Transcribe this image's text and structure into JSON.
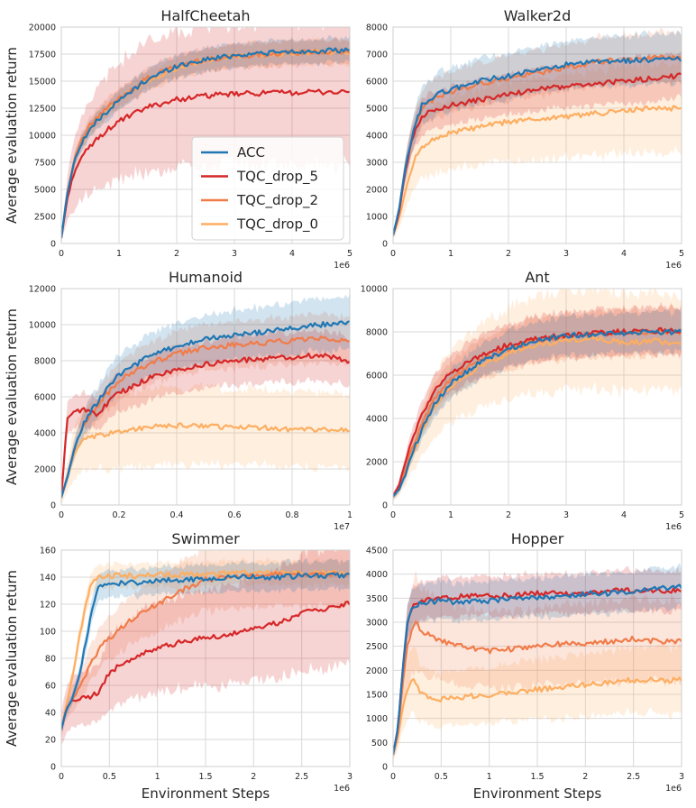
{
  "figure": {
    "x_axis_label": "Environment Steps",
    "y_axis_label": "Average evaluation return"
  },
  "colors": {
    "ACC": "#1f77b4",
    "TQC_drop_5": "#d62728",
    "TQC_drop_2": "#f07c4a",
    "TQC_drop_0": "#fdae61"
  },
  "legend": [
    "ACC",
    "TQC_drop_5",
    "TQC_drop_2",
    "TQC_drop_0"
  ],
  "chart_data": [
    {
      "type": "line",
      "title": "HalfCheetah",
      "xlabel": "",
      "ylabel": "Average evaluation return",
      "x_multiplier": "1e6",
      "xlim": [
        0,
        5
      ],
      "ylim": [
        0,
        20000
      ],
      "xticks": [
        0,
        1,
        2,
        3,
        4,
        5
      ],
      "yticks": [
        0,
        2500,
        5000,
        7500,
        10000,
        12500,
        15000,
        17500,
        20000
      ],
      "x": [
        0,
        0.05,
        0.1,
        0.2,
        0.3,
        0.5,
        0.75,
        1,
        1.5,
        2,
        2.5,
        3,
        3.5,
        4,
        4.5,
        5
      ],
      "series": [
        {
          "name": "ACC",
          "values": [
            500,
            2500,
            4500,
            7000,
            8800,
            10600,
            12000,
            13200,
            15200,
            16400,
            17000,
            17400,
            17600,
            17700,
            17800,
            17800
          ],
          "spread": 0.05
        },
        {
          "name": "TQC_drop_5",
          "values": [
            500,
            2300,
            4000,
            6200,
            7500,
            9000,
            10300,
            11300,
            12600,
            13300,
            13650,
            13800,
            13900,
            13950,
            14000,
            14000
          ],
          "spread": 0.45
        },
        {
          "name": "TQC_drop_2",
          "values": [
            500,
            2500,
            4500,
            7200,
            9000,
            10900,
            12300,
            13400,
            15300,
            16400,
            17000,
            17300,
            17500,
            17600,
            17700,
            17700
          ],
          "spread": 0.05
        },
        {
          "name": "TQC_drop_0",
          "values": [
            500,
            2400,
            4300,
            7000,
            8800,
            10700,
            12100,
            13300,
            15100,
            16200,
            16900,
            17300,
            17500,
            17600,
            17700,
            17700
          ],
          "spread": 0.05
        }
      ],
      "legend_position": "center-right"
    },
    {
      "type": "line",
      "title": "Walker2d",
      "xlabel": "",
      "ylabel": "",
      "x_multiplier": "1e6",
      "xlim": [
        0,
        5
      ],
      "ylim": [
        0,
        8000
      ],
      "xticks": [
        0,
        1,
        2,
        3,
        4,
        5
      ],
      "yticks": [
        0,
        1000,
        2000,
        3000,
        4000,
        5000,
        6000,
        7000,
        8000
      ],
      "x": [
        0,
        0.1,
        0.2,
        0.3,
        0.4,
        0.5,
        0.75,
        1,
        1.5,
        2,
        2.5,
        3,
        3.5,
        4,
        4.5,
        5
      ],
      "series": [
        {
          "name": "ACC",
          "values": [
            300,
            1200,
            2600,
            3700,
            4500,
            5100,
            5500,
            5700,
            6000,
            6200,
            6400,
            6600,
            6700,
            6750,
            6800,
            6800
          ],
          "spread": 0.12
        },
        {
          "name": "TQC_drop_5",
          "values": [
            300,
            1100,
            2500,
            3600,
            4300,
            4700,
            5000,
            5100,
            5300,
            5500,
            5700,
            5800,
            5900,
            6000,
            6100,
            6200
          ],
          "spread": 0.12
        },
        {
          "name": "TQC_drop_2",
          "values": [
            300,
            1200,
            2600,
            3700,
            4500,
            5000,
            5400,
            5600,
            5900,
            6100,
            6300,
            6500,
            6700,
            6800,
            6850,
            6900
          ],
          "spread": 0.12
        },
        {
          "name": "TQC_drop_0",
          "values": [
            300,
            900,
            1800,
            2600,
            3200,
            3600,
            3900,
            4100,
            4300,
            4500,
            4600,
            4700,
            4800,
            4900,
            5000,
            5000
          ],
          "spread": 0.3
        }
      ]
    },
    {
      "type": "line",
      "title": "Humanoid",
      "xlabel": "",
      "ylabel": "Average evaluation return",
      "x_multiplier": "1e7",
      "xlim": [
        0,
        1.0
      ],
      "ylim": [
        0,
        12000
      ],
      "xticks": [
        0,
        0.2,
        0.4,
        0.6,
        0.8,
        1.0
      ],
      "yticks": [
        0,
        2000,
        4000,
        6000,
        8000,
        10000,
        12000
      ],
      "x": [
        0,
        0.02,
        0.04,
        0.06,
        0.08,
        0.1,
        0.12,
        0.15,
        0.2,
        0.3,
        0.4,
        0.5,
        0.6,
        0.7,
        0.8,
        0.9,
        1.0
      ],
      "series": [
        {
          "name": "ACC",
          "values": [
            400,
            1500,
            2800,
            3800,
            4600,
            5100,
            5600,
            6300,
            7200,
            8200,
            8800,
            9200,
            9400,
            9600,
            9800,
            10000,
            10100
          ],
          "spread": 0.13
        },
        {
          "name": "TQC_drop_5",
          "values": [
            400,
            4800,
            5100,
            5200,
            5300,
            5300,
            4900,
            5500,
            6200,
            7000,
            7500,
            7800,
            8000,
            8100,
            8200,
            8300,
            8000
          ],
          "spread": 0.15
        },
        {
          "name": "TQC_drop_2",
          "values": [
            400,
            1500,
            2800,
            3800,
            4500,
            5000,
            5400,
            6000,
            6900,
            7800,
            8400,
            8700,
            8900,
            9000,
            9100,
            9200,
            9100
          ],
          "spread": 0.13
        },
        {
          "name": "TQC_drop_0",
          "values": [
            400,
            1500,
            2600,
            3300,
            3600,
            3700,
            3800,
            3900,
            4100,
            4300,
            4400,
            4400,
            4300,
            4300,
            4200,
            4200,
            4100
          ],
          "spread": 0.45
        }
      ]
    },
    {
      "type": "line",
      "title": "Ant",
      "xlabel": "",
      "ylabel": "",
      "x_multiplier": "1e6",
      "xlim": [
        0,
        5
      ],
      "ylim": [
        0,
        10000
      ],
      "xticks": [
        0,
        1,
        2,
        3,
        4,
        5
      ],
      "yticks": [
        0,
        2000,
        4000,
        6000,
        8000,
        10000
      ],
      "x": [
        0,
        0.1,
        0.2,
        0.3,
        0.5,
        0.75,
        1,
        1.5,
        2,
        2.5,
        3,
        3.5,
        4,
        4.5,
        5
      ],
      "series": [
        {
          "name": "ACC",
          "values": [
            400,
            700,
            1300,
            2100,
            3500,
            4800,
            5600,
            6600,
            7200,
            7600,
            7800,
            7900,
            7950,
            8000,
            8000
          ],
          "spread": 0.1
        },
        {
          "name": "TQC_drop_5",
          "values": [
            400,
            900,
            1800,
            2800,
            4200,
            5400,
            6100,
            6900,
            7400,
            7700,
            7850,
            7950,
            8000,
            8050,
            8100
          ],
          "spread": 0.12
        },
        {
          "name": "TQC_drop_2",
          "values": [
            400,
            800,
            1500,
            2400,
            3800,
            5000,
            5800,
            6700,
            7200,
            7600,
            7800,
            7900,
            7950,
            8000,
            8000
          ],
          "spread": 0.12
        },
        {
          "name": "TQC_drop_0",
          "values": [
            400,
            700,
            1300,
            2100,
            3400,
            4700,
            5500,
            6400,
            7000,
            7400,
            7600,
            7700,
            7500,
            7600,
            7400
          ],
          "spread": 0.28
        }
      ]
    },
    {
      "type": "line",
      "title": "Swimmer",
      "xlabel": "Environment Steps",
      "ylabel": "Average evaluation return",
      "x_multiplier": "1e6",
      "xlim": [
        0,
        3.0
      ],
      "ylim": [
        0,
        160
      ],
      "xticks": [
        0,
        0.5,
        1.0,
        1.5,
        2.0,
        2.5,
        3.0
      ],
      "yticks": [
        0,
        20,
        40,
        60,
        80,
        100,
        120,
        140,
        160
      ],
      "x": [
        0,
        0.05,
        0.1,
        0.2,
        0.3,
        0.4,
        0.5,
        0.75,
        1.0,
        1.25,
        1.5,
        1.75,
        2.0,
        2.25,
        2.5,
        2.75,
        3.0
      ],
      "series": [
        {
          "name": "ACC",
          "values": [
            27,
            42,
            47,
            70,
            110,
            135,
            135,
            136,
            137,
            138,
            139,
            140,
            140,
            140,
            141,
            141,
            141
          ],
          "spread": 0.06
        },
        {
          "name": "TQC_drop_5",
          "values": [
            27,
            42,
            48,
            50,
            52,
            55,
            70,
            80,
            88,
            92,
            95,
            98,
            102,
            106,
            113,
            117,
            121
          ],
          "spread": 0.35
        },
        {
          "name": "TQC_drop_2",
          "values": [
            27,
            42,
            48,
            60,
            75,
            88,
            95,
            110,
            120,
            130,
            138,
            140,
            141,
            142,
            142,
            142,
            142
          ],
          "spread": 0.15
        },
        {
          "name": "TQC_drop_0",
          "values": [
            27,
            45,
            60,
            100,
            135,
            140,
            141,
            141,
            142,
            142,
            142,
            143,
            143,
            143,
            143,
            143,
            143
          ],
          "spread": 0.05
        }
      ]
    },
    {
      "type": "line",
      "title": "Hopper",
      "xlabel": "Environment Steps",
      "ylabel": "",
      "x_multiplier": "1e6",
      "xlim": [
        0,
        3.0
      ],
      "ylim": [
        0,
        4500
      ],
      "xticks": [
        0,
        0.5,
        1.0,
        1.5,
        2.0,
        2.5,
        3.0
      ],
      "yticks": [
        0,
        500,
        1000,
        1500,
        2000,
        2500,
        3000,
        3500,
        4000,
        4500
      ],
      "x": [
        0,
        0.05,
        0.1,
        0.15,
        0.2,
        0.25,
        0.3,
        0.5,
        0.75,
        1.0,
        1.25,
        1.5,
        1.75,
        2.0,
        2.25,
        2.5,
        2.75,
        3.0
      ],
      "series": [
        {
          "name": "ACC",
          "values": [
            250,
            800,
            2000,
            3000,
            3300,
            3350,
            3400,
            3450,
            3400,
            3450,
            3500,
            3500,
            3550,
            3600,
            3600,
            3650,
            3700,
            3750
          ],
          "spread": 0.1
        },
        {
          "name": "TQC_drop_5",
          "values": [
            250,
            800,
            2000,
            3000,
            3300,
            3400,
            3450,
            3500,
            3550,
            3550,
            3550,
            3600,
            3600,
            3600,
            3650,
            3650,
            3650,
            3650
          ],
          "spread": 0.1
        },
        {
          "name": "TQC_drop_2",
          "values": [
            250,
            700,
            1700,
            2500,
            2900,
            3000,
            2800,
            2600,
            2500,
            2400,
            2450,
            2500,
            2550,
            2550,
            2600,
            2650,
            2600,
            2600
          ],
          "spread": 0.3
        },
        {
          "name": "TQC_drop_0",
          "values": [
            250,
            600,
            1200,
            1600,
            1800,
            1700,
            1500,
            1400,
            1450,
            1500,
            1550,
            1600,
            1650,
            1700,
            1750,
            1800,
            1800,
            1800
          ],
          "spread": 0.35
        }
      ]
    }
  ]
}
